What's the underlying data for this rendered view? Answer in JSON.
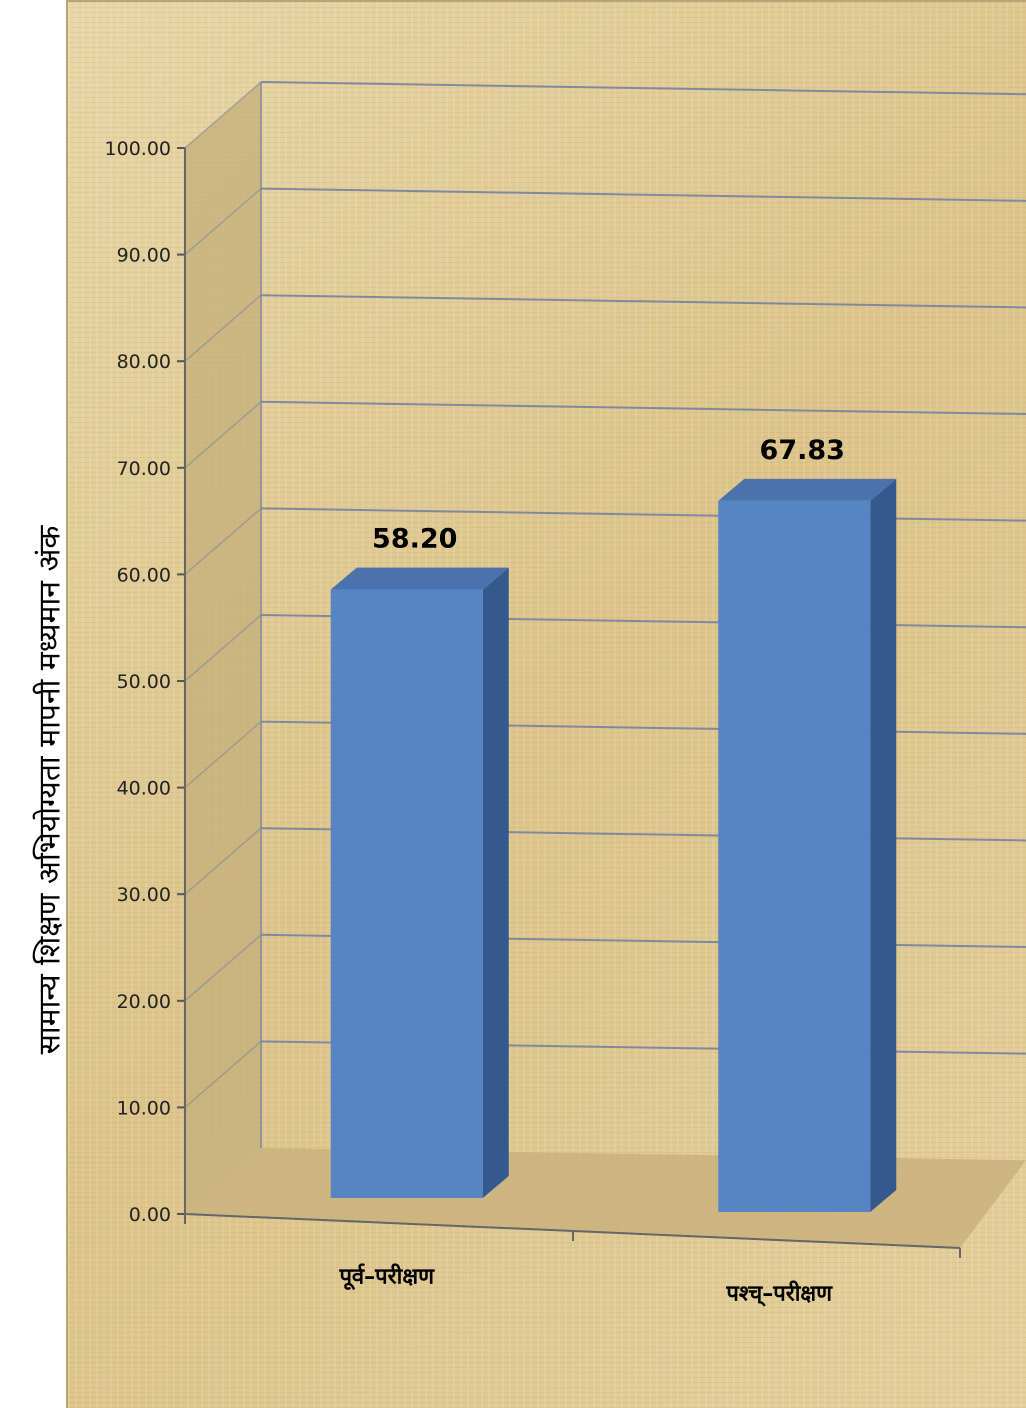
{
  "chart_data": {
    "type": "bar",
    "title": "",
    "xlabel": "",
    "ylabel": "सामान्य शिक्षण अभियोग्यता मापनी मध्यमान अंक",
    "categories": [
      "पूर्व–परीक्षण",
      "पश्च्–परीक्षण"
    ],
    "values": [
      58.2,
      67.83
    ],
    "data_labels": [
      "58.20",
      "67.83"
    ],
    "ylim": [
      0,
      100
    ],
    "ytick_labels": [
      "0.00",
      "10.00",
      "20.00",
      "30.00",
      "40.00",
      "50.00",
      "60.00",
      "70.00",
      "80.00",
      "90.00",
      "100.00"
    ],
    "grid": true,
    "legend": "none",
    "style": "3d-column",
    "colors": {
      "bar_front": "#5585c5",
      "bar_side": "#35598c",
      "bar_top": "#4a73ad",
      "gridline": "#7f8aa0",
      "background": "#e0cc96"
    }
  }
}
